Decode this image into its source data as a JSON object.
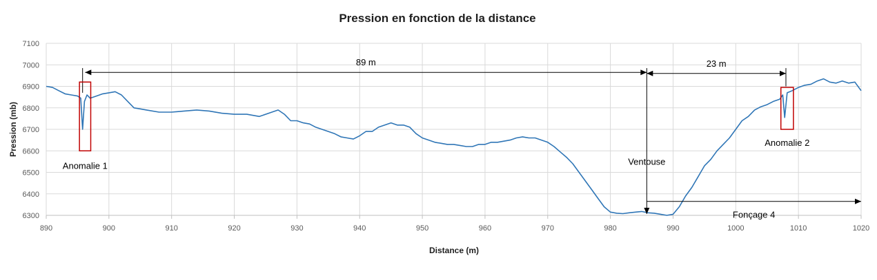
{
  "chart_data": {
    "type": "line",
    "title": "Pression en fonction de la distance",
    "xlabel": "Distance (m)",
    "ylabel": "Pression (mb)",
    "xlim": [
      890,
      1020
    ],
    "ylim": [
      6300,
      7100
    ],
    "xticks": [
      890,
      900,
      910,
      920,
      930,
      940,
      950,
      960,
      970,
      980,
      990,
      1000,
      1010,
      1020
    ],
    "yticks": [
      6300,
      6400,
      6500,
      6600,
      6700,
      6800,
      6900,
      7000,
      7100
    ],
    "grid": true,
    "series": [
      {
        "color": "#2e75b6",
        "x": [
          890,
          891,
          892,
          893,
          894,
          895,
          895.5,
          895.8,
          896.1,
          896.5,
          897,
          898,
          899,
          900,
          901,
          902,
          903,
          904,
          905,
          906,
          908,
          910,
          912,
          914,
          916,
          918,
          920,
          922,
          924,
          926,
          927,
          928,
          929,
          930,
          931,
          932,
          933,
          934,
          935,
          936,
          937,
          938,
          939,
          940,
          941,
          942,
          943,
          944,
          945,
          946,
          947,
          948,
          949,
          950,
          951,
          952,
          953,
          954,
          955,
          956,
          957,
          958,
          959,
          960,
          961,
          962,
          963,
          964,
          965,
          966,
          967,
          968,
          969,
          970,
          971,
          972,
          973,
          974,
          975,
          976,
          977,
          978,
          979,
          980,
          981,
          982,
          983,
          984,
          985,
          986,
          987,
          988,
          989,
          990,
          991,
          992,
          993,
          994,
          995,
          996,
          997,
          998,
          999,
          1000,
          1001,
          1002,
          1003,
          1004,
          1005,
          1006,
          1007,
          1007.5,
          1007.8,
          1008.2,
          1009,
          1010,
          1011,
          1012,
          1013,
          1014,
          1015,
          1016,
          1017,
          1018,
          1019,
          1020
        ],
        "y": [
          6900,
          6895,
          6880,
          6865,
          6860,
          6855,
          6845,
          6700,
          6830,
          6860,
          6845,
          6855,
          6865,
          6870,
          6875,
          6860,
          6830,
          6800,
          6795,
          6790,
          6780,
          6780,
          6785,
          6790,
          6785,
          6775,
          6770,
          6770,
          6760,
          6780,
          6790,
          6770,
          6740,
          6740,
          6730,
          6725,
          6710,
          6700,
          6690,
          6680,
          6665,
          6660,
          6655,
          6670,
          6690,
          6690,
          6710,
          6720,
          6730,
          6720,
          6720,
          6710,
          6680,
          6660,
          6650,
          6640,
          6635,
          6630,
          6630,
          6625,
          6620,
          6620,
          6630,
          6630,
          6640,
          6640,
          6645,
          6650,
          6660,
          6665,
          6660,
          6660,
          6650,
          6640,
          6620,
          6595,
          6570,
          6540,
          6500,
          6460,
          6420,
          6380,
          6340,
          6315,
          6310,
          6308,
          6312,
          6315,
          6318,
          6312,
          6310,
          6305,
          6300,
          6305,
          6340,
          6390,
          6430,
          6480,
          6530,
          6560,
          6600,
          6630,
          6660,
          6700,
          6740,
          6760,
          6790,
          6805,
          6815,
          6830,
          6840,
          6860,
          6755,
          6870,
          6880,
          6895,
          6905,
          6910,
          6925,
          6935,
          6920,
          6915,
          6925,
          6915,
          6920,
          6880
        ]
      }
    ],
    "annotations": [
      {
        "text": "89 m",
        "from_x": 896.2,
        "to_x": 985.8,
        "y": 6965
      },
      {
        "text": "23 m",
        "from_x": 985.8,
        "to_x": 1008,
        "y": 6960
      },
      {
        "text": "Fonçage 4",
        "from_x": 985.8,
        "to_x": 1020,
        "y": 6365
      },
      {
        "text": "Ventouse",
        "x": 985.8,
        "y": 6300
      },
      {
        "text": "Anomalie 1",
        "x_min": 895.3,
        "x_max": 897.1,
        "y_min": 6600,
        "y_max": 6920
      },
      {
        "text": "Anomalie 2",
        "x_min": 1007.2,
        "x_max": 1009.2,
        "y_min": 6700,
        "y_max": 6895
      }
    ]
  }
}
